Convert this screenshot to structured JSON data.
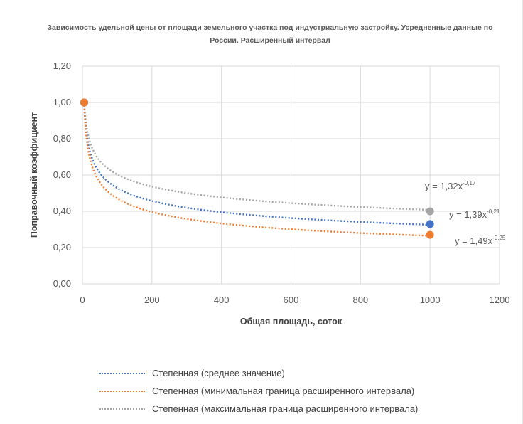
{
  "chart_data": {
    "type": "line",
    "title": "Зависимость удельной цены от площади земельного участка под индустриальную застройку. Усредненные данные по России. Расширенный интервал",
    "xlabel": "Общая площадь, соток",
    "ylabel": "Поправочный коэффициент",
    "xlim": [
      0,
      1200
    ],
    "ylim": [
      0,
      1.2
    ],
    "x_ticks": [
      "0",
      "200",
      "400",
      "600",
      "800",
      "1000",
      "1200"
    ],
    "y_ticks": [
      "0,00",
      "0,20",
      "0,40",
      "0,60",
      "0,80",
      "1,00",
      "1,20"
    ],
    "grid": true,
    "legend_position": "bottom",
    "series": [
      {
        "name": "Степенная (среднее значение)",
        "color": "#4472C4",
        "coef": 1.39,
        "exp": -0.21,
        "x": [
          5,
          1000
        ],
        "y": [
          1.0,
          0.33
        ],
        "equation_base": "y = 1,39x",
        "equation_exp": "-0,21"
      },
      {
        "name": "Степенная (минимальная граница расширенного интервала)",
        "color": "#ED7D31",
        "coef": 1.49,
        "exp": -0.25,
        "x": [
          5,
          1000
        ],
        "y": [
          1.0,
          0.27
        ],
        "equation_base": "y = 1,49x",
        "equation_exp": "-0,25"
      },
      {
        "name": "Степенная (максимальная граница расширенного интервала)",
        "color": "#A5A5A5",
        "coef": 1.32,
        "exp": -0.17,
        "x": [
          5,
          1000
        ],
        "y": [
          1.0,
          0.4
        ],
        "equation_base": "y = 1,32x",
        "equation_exp": "-0,17"
      }
    ]
  }
}
